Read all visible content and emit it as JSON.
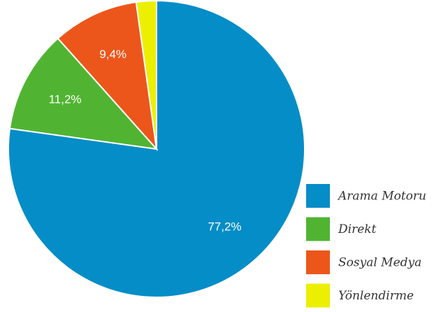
{
  "chart_data": {
    "type": "pie",
    "categories": [
      "Arama Motoru",
      "Direkt",
      "Sosyal Medya",
      "Yönlendirme"
    ],
    "values": [
      77.2,
      11.2,
      9.4,
      2.2
    ],
    "value_labels": [
      "77,2%",
      "11,2%",
      "9,4%",
      null
    ],
    "colors": [
      "#058dc7",
      "#50b432",
      "#ed561b",
      "#edef00"
    ],
    "legend": "bottom-right"
  }
}
